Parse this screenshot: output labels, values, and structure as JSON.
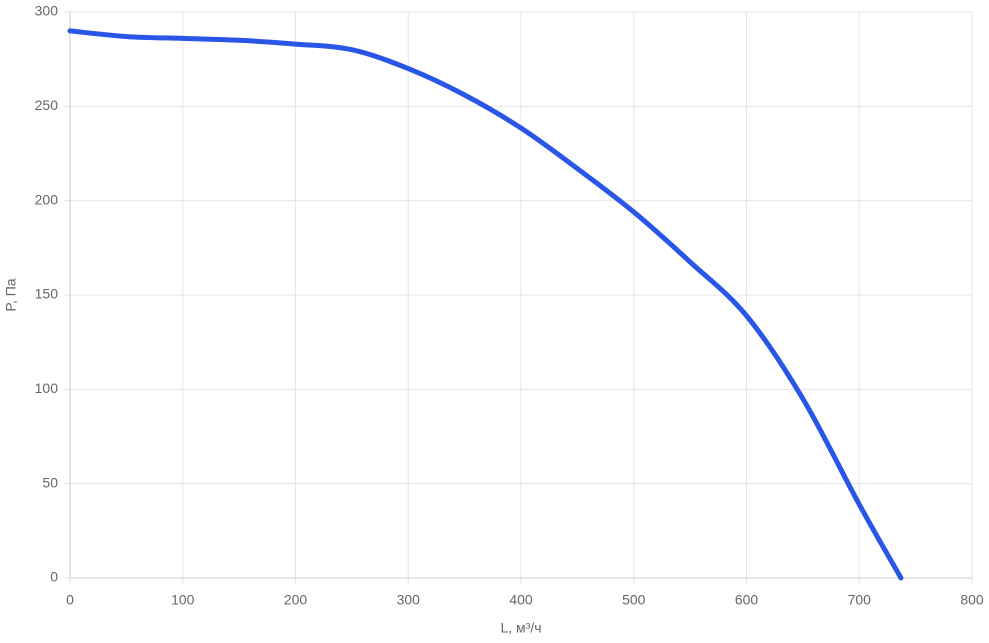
{
  "chart_data": {
    "type": "line",
    "x_label": "L, м³/ч",
    "y_label": "P, Па",
    "series": [
      {
        "name": "P",
        "color": "#2a56e8",
        "x": [
          0,
          50,
          100,
          150,
          200,
          250,
          300,
          350,
          400,
          450,
          500,
          550,
          600,
          650,
          700,
          737
        ],
        "values": [
          290,
          287,
          286,
          285,
          283,
          280,
          270,
          256,
          238.5,
          217,
          194,
          167.5,
          139,
          95,
          39,
          0
        ]
      }
    ],
    "xlim": [
      0,
      800
    ],
    "xticks": [
      0,
      100,
      200,
      300,
      400,
      500,
      600,
      700,
      800
    ],
    "ylim": [
      0,
      300
    ],
    "yticks": [
      0,
      50,
      100,
      150,
      200,
      250,
      300
    ],
    "grid": true
  }
}
